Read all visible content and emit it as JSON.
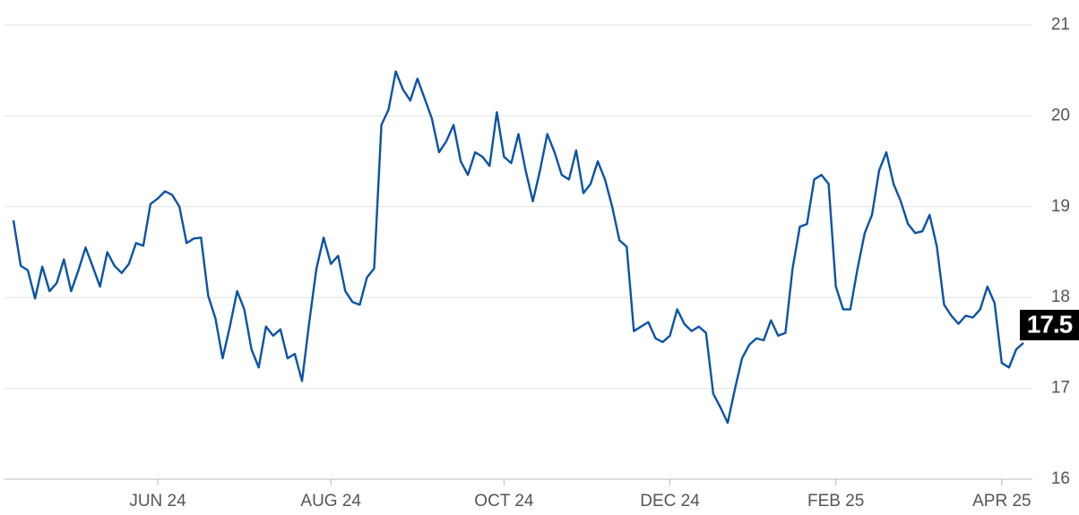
{
  "chart_data": {
    "type": "line",
    "categories": [
      null,
      null,
      null,
      null,
      null,
      null,
      null,
      null,
      null,
      null,
      null,
      null,
      null,
      null,
      null,
      null,
      null,
      null,
      null,
      null,
      "JUN 24",
      null,
      null,
      null,
      null,
      null,
      null,
      null,
      null,
      null,
      null,
      null,
      null,
      null,
      null,
      null,
      null,
      null,
      null,
      null,
      null,
      null,
      null,
      null,
      "AUG 24",
      null,
      null,
      null,
      null,
      null,
      null,
      null,
      null,
      null,
      null,
      null,
      null,
      null,
      null,
      null,
      null,
      null,
      null,
      null,
      null,
      null,
      null,
      null,
      "OCT 24",
      null,
      null,
      null,
      null,
      null,
      null,
      null,
      null,
      null,
      null,
      null,
      null,
      null,
      null,
      null,
      null,
      null,
      null,
      null,
      null,
      null,
      null,
      "DEC 24",
      null,
      null,
      null,
      null,
      null,
      null,
      null,
      null,
      null,
      null,
      null,
      null,
      null,
      null,
      null,
      null,
      null,
      null,
      null,
      null,
      null,
      null,
      "FEB 25",
      null,
      null,
      null,
      null,
      null,
      null,
      null,
      null,
      null,
      null,
      null,
      null,
      null,
      null,
      null,
      null,
      null,
      null,
      null,
      null,
      null,
      null,
      "APR 25",
      null,
      null,
      null
    ],
    "values": [
      18.85,
      18.35,
      18.3,
      17.99,
      18.34,
      18.07,
      18.16,
      18.42,
      18.07,
      18.3,
      18.55,
      18.34,
      18.12,
      18.5,
      18.35,
      18.27,
      18.37,
      18.6,
      18.57,
      19.03,
      19.09,
      19.17,
      19.13,
      19.0,
      18.6,
      18.65,
      18.66,
      18.02,
      17.77,
      17.33,
      17.68,
      18.07,
      17.87,
      17.43,
      17.23,
      17.68,
      17.58,
      17.65,
      17.33,
      17.38,
      17.08,
      17.73,
      18.32,
      18.66,
      18.37,
      18.46,
      18.07,
      17.95,
      17.92,
      18.22,
      18.32,
      19.9,
      20.07,
      20.49,
      20.29,
      20.17,
      20.41,
      20.19,
      19.97,
      19.6,
      19.72,
      19.9,
      19.5,
      19.35,
      19.6,
      19.55,
      19.45,
      20.04,
      19.55,
      19.48,
      19.8,
      19.4,
      19.06,
      19.4,
      19.8,
      19.6,
      19.35,
      19.3,
      19.62,
      19.15,
      19.25,
      19.5,
      19.3,
      19.0,
      18.63,
      18.56,
      17.63,
      17.68,
      17.73,
      17.55,
      17.51,
      17.58,
      17.87,
      17.71,
      17.63,
      17.68,
      17.61,
      16.94,
      16.79,
      16.62,
      16.99,
      17.33,
      17.48,
      17.55,
      17.53,
      17.75,
      17.58,
      17.61,
      18.32,
      18.78,
      18.81,
      19.3,
      19.35,
      19.25,
      18.12,
      17.87,
      17.87,
      18.32,
      18.71,
      18.91,
      19.4,
      19.6,
      19.25,
      19.06,
      18.81,
      18.71,
      18.73,
      18.91,
      18.56,
      17.92,
      17.8,
      17.71,
      17.8,
      17.78,
      17.87,
      18.12,
      17.94,
      17.28,
      17.23,
      17.43,
      17.5
    ],
    "color": "#0b53a5",
    "ylim": [
      16,
      21
    ],
    "yticks": [
      16,
      17,
      18,
      19,
      20,
      21
    ],
    "grid": true
  }
}
